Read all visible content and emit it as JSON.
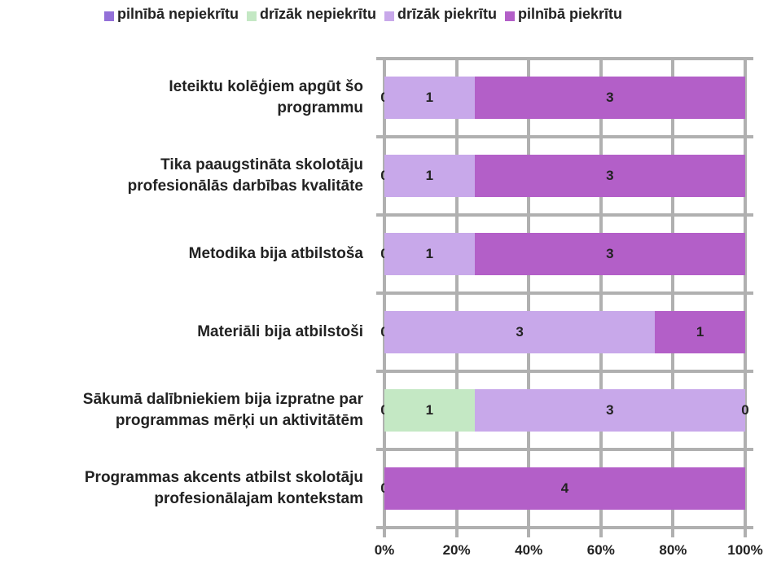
{
  "chart_data": {
    "type": "bar",
    "orientation": "horizontal",
    "stacked": "percent",
    "categories": [
      "Ieteiktu kolēģiem apgūt šo\nprogrammu",
      "Tika paaugstināta skolotāju\nprofesionālās darbības kvalitāte",
      "Metodika bija atbilstoša",
      "Materiāli bija atbilstoši",
      "Sākumā dalībniekiem bija izpratne par\nprogrammas mērķi un aktivitātēm",
      "Programmas akcents atbilst skolotāju\nprofesionālajam kontekstam"
    ],
    "series": [
      {
        "name": "pilnībā nepiekrītu",
        "color": "#9370d8",
        "values": [
          0,
          0,
          0,
          0,
          0,
          0
        ]
      },
      {
        "name": "drīzāk nepiekrītu",
        "color": "#c4e8c4",
        "values": [
          null,
          null,
          null,
          null,
          1,
          null
        ]
      },
      {
        "name": "drīzāk piekrītu",
        "color": "#c8a8ea",
        "values": [
          1,
          1,
          1,
          3,
          3,
          null
        ]
      },
      {
        "name": "pilnībā piekrītu",
        "color": "#b35fc8",
        "values": [
          3,
          3,
          3,
          1,
          0,
          4
        ]
      }
    ],
    "xlim": [
      0,
      100
    ],
    "xticks": [
      {
        "value": 0,
        "label": "0%"
      },
      {
        "value": 20,
        "label": "20%"
      },
      {
        "value": 40,
        "label": "40%"
      },
      {
        "value": 60,
        "label": "60%"
      },
      {
        "value": 80,
        "label": "80%"
      },
      {
        "value": 100,
        "label": "100%"
      }
    ],
    "grid": true,
    "legend": "top"
  }
}
